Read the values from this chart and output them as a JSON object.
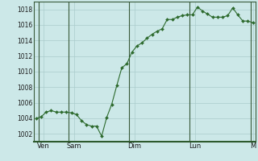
{
  "background_color": "#cce8e8",
  "plot_bg_color": "#cce8e8",
  "grid_color": "#aacccc",
  "line_color": "#2d6a2d",
  "marker_color": "#2d6a2d",
  "ylim": [
    1001.0,
    1019.0
  ],
  "yticks": [
    1002,
    1004,
    1006,
    1008,
    1010,
    1012,
    1014,
    1016,
    1018
  ],
  "x_day_labels": [
    "Ven",
    "Sam",
    "Dim",
    "Lun",
    "M"
  ],
  "x_day_positions": [
    1.5,
    7.5,
    19.5,
    31.5,
    43.0
  ],
  "x_separator_positions": [
    0.5,
    6.5,
    18.5,
    30.5,
    42.5
  ],
  "y_values": [
    1004.0,
    1004.2,
    1004.8,
    1005.0,
    1004.8,
    1004.8,
    1004.8,
    1004.7,
    1004.5,
    1003.7,
    1003.2,
    1003.0,
    1003.0,
    1001.7,
    1004.1,
    1005.8,
    1008.2,
    1010.5,
    1011.0,
    1012.5,
    1013.3,
    1013.7,
    1014.3,
    1014.8,
    1015.2,
    1015.5,
    1016.7,
    1016.7,
    1017.0,
    1017.2,
    1017.3,
    1017.3,
    1018.3,
    1017.8,
    1017.4,
    1017.0,
    1017.0,
    1017.0,
    1017.2,
    1018.2,
    1017.3,
    1016.5,
    1016.5,
    1016.3
  ]
}
